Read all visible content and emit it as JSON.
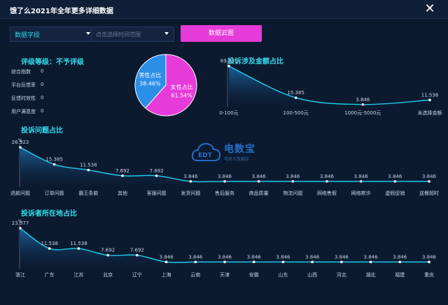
{
  "window": {
    "title": "饿了么2021年全年更多详细数据"
  },
  "filters": {
    "dimension_select": "数据字段",
    "date_placeholder": "点击选择时间范围",
    "cloud_button": "数据云图"
  },
  "rating": {
    "title": "评级等级：不予评级",
    "items": [
      {
        "label": "综合指数",
        "value": "0"
      },
      {
        "label": "平台反馈率",
        "value": "0"
      },
      {
        "label": "反馈时效性",
        "value": "0"
      },
      {
        "label": "用户满意度",
        "value": "0"
      }
    ]
  },
  "gender_pie": {
    "chart_data": {
      "type": "pie",
      "slices": [
        {
          "name": "男性占比",
          "label": "38.46%",
          "value": 38.46,
          "color": "#2b8fe8"
        },
        {
          "name": "女性占比",
          "label": "61.54%",
          "value": 61.54,
          "color": "#e63bd8"
        }
      ]
    }
  },
  "amount_chart": {
    "title": "投诉涉及金额占比",
    "chart_data": {
      "type": "area",
      "categories": [
        "0-100元",
        "100-500元",
        "1000元-5000元",
        "未选择金额"
      ],
      "values": [
        69.231,
        15.385,
        3.846,
        11.538
      ],
      "value_labels": [
        "69.231",
        "15.385",
        "3.846",
        "11.538"
      ],
      "ylim": [
        0,
        70
      ]
    }
  },
  "issue_chart": {
    "title": "投诉问题占比",
    "unit": "%",
    "chart_data": {
      "type": "area",
      "categories": [
        "退款问题",
        "订单问题",
        "霸王条款",
        "其他",
        "客服问题",
        "发货问题",
        "售后服务",
        "商品质量",
        "物流问题",
        "网络售假",
        "网络欺诈",
        "虚假促销",
        "送餐超时"
      ],
      "values": [
        26.923,
        15.385,
        11.538,
        7.692,
        7.692,
        3.846,
        3.846,
        3.846,
        3.846,
        3.846,
        3.846,
        3.846,
        3.846
      ],
      "value_labels": [
        "26.923",
        "15.385",
        "11.538",
        "7.692",
        "7.692",
        "3.846",
        "3.846",
        "3.846",
        "3.846",
        "3.846",
        "3.846",
        "3.846",
        "3.846"
      ],
      "ylim": [
        0,
        27
      ]
    }
  },
  "location_chart": {
    "title": "投诉者所在地占比",
    "unit": "%",
    "chart_data": {
      "type": "area",
      "categories": [
        "浙江",
        "广东",
        "江苏",
        "北京",
        "辽宁",
        "上海",
        "云南",
        "天津",
        "安徽",
        "山东",
        "山西",
        "河北",
        "湖北",
        "福建",
        "重庆"
      ],
      "values": [
        23.077,
        11.538,
        11.538,
        7.692,
        7.692,
        3.846,
        3.846,
        3.846,
        3.846,
        3.846,
        3.846,
        3.846,
        3.846,
        3.846,
        3.846
      ],
      "value_labels": [
        "23.077",
        "11.538",
        "11.538",
        "7.692",
        "7.692",
        "3.846",
        "3.846",
        "3.846",
        "3.846",
        "3.846",
        "3.846",
        "3.846",
        "3.846",
        "3.846",
        "3.846"
      ],
      "ylim": [
        0,
        23.1
      ]
    }
  },
  "watermark": {
    "name": "电数宝",
    "sub": "电商大数据库",
    "logo_text": "EDT"
  },
  "colors": {
    "accent": "#34e0f0",
    "line": "#1fc8e8",
    "button": "#e53bd8"
  }
}
